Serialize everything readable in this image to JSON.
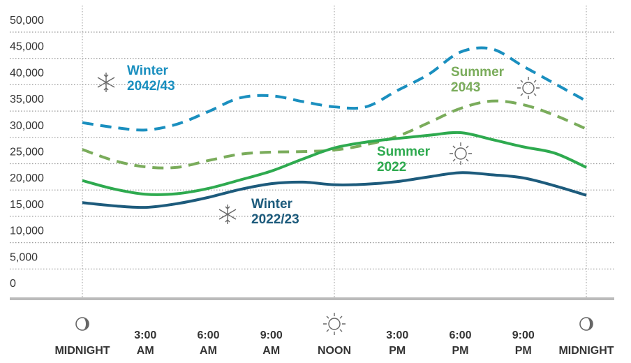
{
  "chart_data": {
    "type": "line",
    "x": [
      0,
      1.5,
      3,
      4.5,
      6,
      7.5,
      9,
      10.5,
      12,
      13.5,
      15,
      16.5,
      18,
      19.5,
      21,
      22.5,
      24
    ],
    "xlim": [
      0,
      24
    ],
    "xticks": [
      {
        "value": 0,
        "label": "MIDNIGHT"
      },
      {
        "value": 3,
        "label": "3:00 AM"
      },
      {
        "value": 6,
        "label": "6:00 AM"
      },
      {
        "value": 9,
        "label": "9:00 AM"
      },
      {
        "value": 12,
        "label": "NOON"
      },
      {
        "value": 15,
        "label": "3:00 PM"
      },
      {
        "value": 18,
        "label": "6:00 PM"
      },
      {
        "value": 21,
        "label": "9:00 PM"
      },
      {
        "value": 24,
        "label": "MIDNIGHT"
      }
    ],
    "ylim": [
      0,
      50000
    ],
    "yticks": [
      {
        "value": 0,
        "label": "0"
      },
      {
        "value": 5000,
        "label": "5,000"
      },
      {
        "value": 10000,
        "label": "10,000"
      },
      {
        "value": 15000,
        "label": "15,000"
      },
      {
        "value": 20000,
        "label": "20,000"
      },
      {
        "value": 25000,
        "label": "25,000"
      },
      {
        "value": 30000,
        "label": "30,000"
      },
      {
        "value": 35000,
        "label": "35,000"
      },
      {
        "value": 40000,
        "label": "40,000"
      },
      {
        "value": 45000,
        "label": "45,000"
      },
      {
        "value": 50000,
        "label": "50,000"
      }
    ],
    "grid": true,
    "series": [
      {
        "name": "Winter 2042/43",
        "color": "#1a8fbf",
        "dashed": true,
        "values": [
          32800,
          31900,
          31400,
          32500,
          34900,
          37500,
          37900,
          36800,
          35800,
          35800,
          38900,
          42000,
          46200,
          46800,
          43500,
          40200,
          36900
        ]
      },
      {
        "name": "Summer 2043",
        "color": "#7aac5b",
        "dashed": true,
        "values": [
          27700,
          25600,
          24400,
          24300,
          25600,
          26800,
          27200,
          27300,
          27600,
          28600,
          30200,
          32800,
          35500,
          36900,
          36200,
          34200,
          31600
        ]
      },
      {
        "name": "Summer 2022",
        "color": "#2eaa4f",
        "dashed": false,
        "values": [
          21800,
          20200,
          19200,
          19300,
          20300,
          21900,
          23600,
          25900,
          28000,
          29100,
          29800,
          30400,
          30900,
          29600,
          28200,
          27000,
          24300
        ]
      },
      {
        "name": "Winter 2022/23",
        "color": "#1d5b7c",
        "dashed": false,
        "values": [
          17600,
          17000,
          16700,
          17400,
          18600,
          20100,
          21200,
          21500,
          21000,
          21100,
          21600,
          22500,
          23300,
          22900,
          22300,
          20800,
          19000
        ]
      }
    ]
  }
}
